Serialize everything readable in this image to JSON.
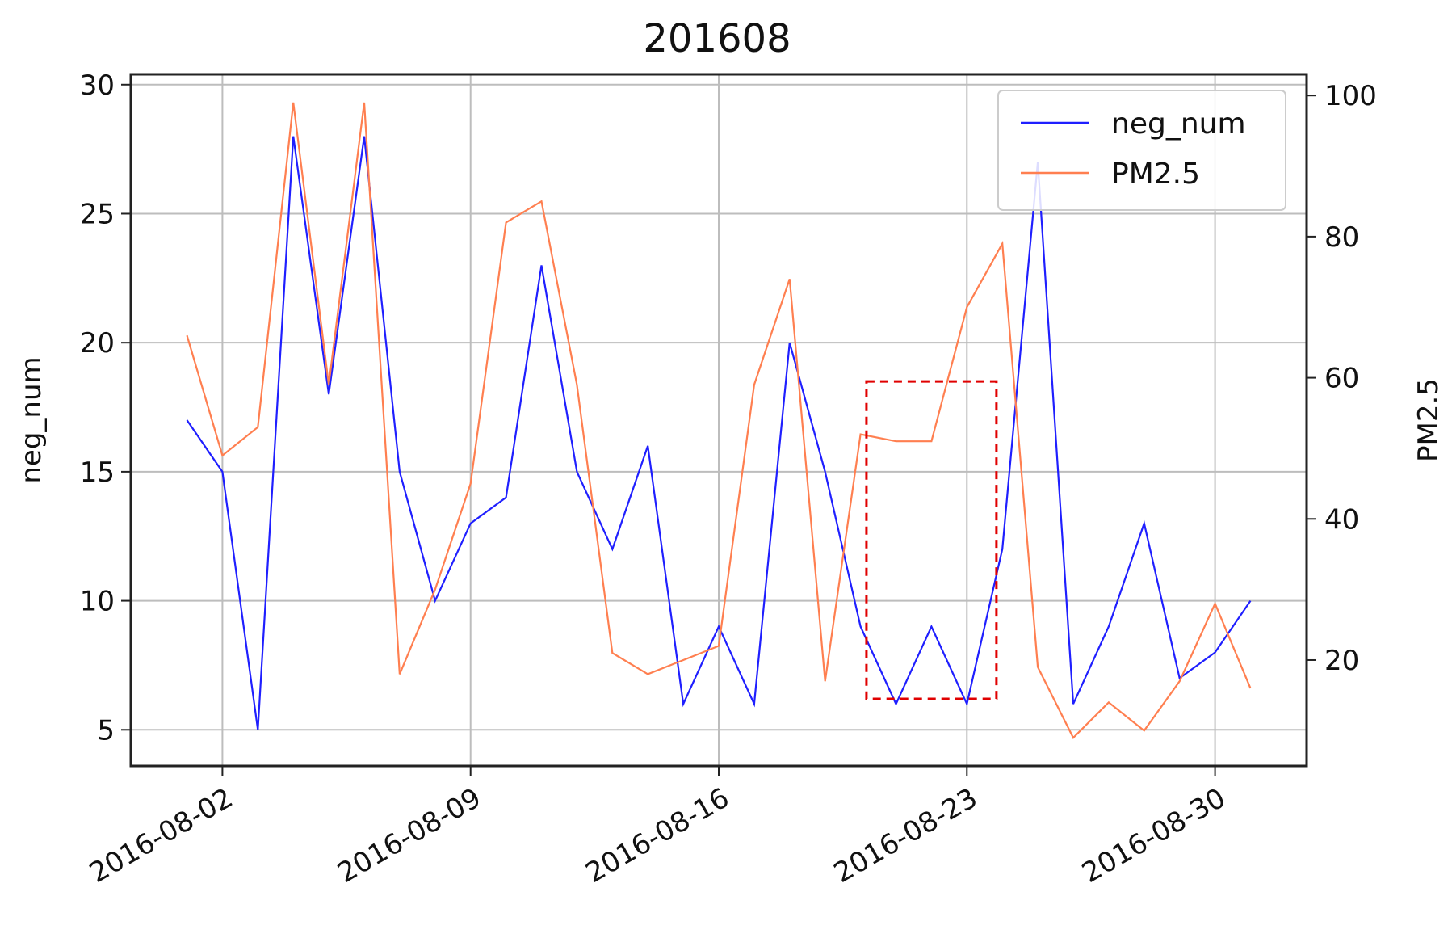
{
  "chart_data": {
    "type": "line",
    "title": "201608",
    "xlabel": "",
    "ylabel": "neg_num",
    "ylabel_right": "PM2.5",
    "x": [
      "2016-08-01",
      "2016-08-02",
      "2016-08-03",
      "2016-08-04",
      "2016-08-05",
      "2016-08-06",
      "2016-08-07",
      "2016-08-08",
      "2016-08-09",
      "2016-08-10",
      "2016-08-11",
      "2016-08-12",
      "2016-08-13",
      "2016-08-14",
      "2016-08-15",
      "2016-08-16",
      "2016-08-17",
      "2016-08-18",
      "2016-08-19",
      "2016-08-20",
      "2016-08-21",
      "2016-08-22",
      "2016-08-23",
      "2016-08-24",
      "2016-08-25",
      "2016-08-26",
      "2016-08-27",
      "2016-08-28",
      "2016-08-29",
      "2016-08-30",
      "2016-08-31"
    ],
    "x_ticks": [
      "2016-08-02",
      "2016-08-09",
      "2016-08-16",
      "2016-08-23",
      "2016-08-30"
    ],
    "x_range": [
      "2016-07-30T10:00",
      "2016-09-01T14:00"
    ],
    "series": [
      {
        "name": "neg_num",
        "axis": "left",
        "color": "#1f1fff",
        "values": [
          17,
          15,
          5,
          28,
          18,
          28,
          15,
          10,
          13,
          14,
          23,
          15,
          12,
          16,
          6,
          9,
          6,
          20,
          15,
          9,
          6,
          9,
          6,
          12,
          27,
          6,
          9,
          13,
          7,
          8,
          10
        ]
      },
      {
        "name": "PM2.5",
        "axis": "right",
        "color": "#ff7f50",
        "values": [
          66,
          49,
          53,
          99,
          59,
          99,
          18,
          30,
          45,
          82,
          85,
          59,
          21,
          18,
          20,
          22,
          59,
          74,
          17,
          52,
          51,
          51,
          70,
          79,
          19,
          9,
          14,
          10,
          17,
          28,
          16
        ]
      }
    ],
    "ylim": [
      3.6,
      30.4
    ],
    "ylim_right": [
      5,
      103
    ],
    "y_ticks": [
      5,
      10,
      15,
      20,
      25,
      30
    ],
    "y_ticks_right": [
      20,
      40,
      60,
      80,
      100
    ],
    "grid": true,
    "legend": "top-right",
    "annotations": [
      {
        "type": "dashed-rectangle",
        "color": "#e00000",
        "x_start": "2016-08-20T04:00",
        "x_end": "2016-08-23T20:00",
        "y_start": 6.2,
        "y_end": 18.5
      }
    ]
  }
}
